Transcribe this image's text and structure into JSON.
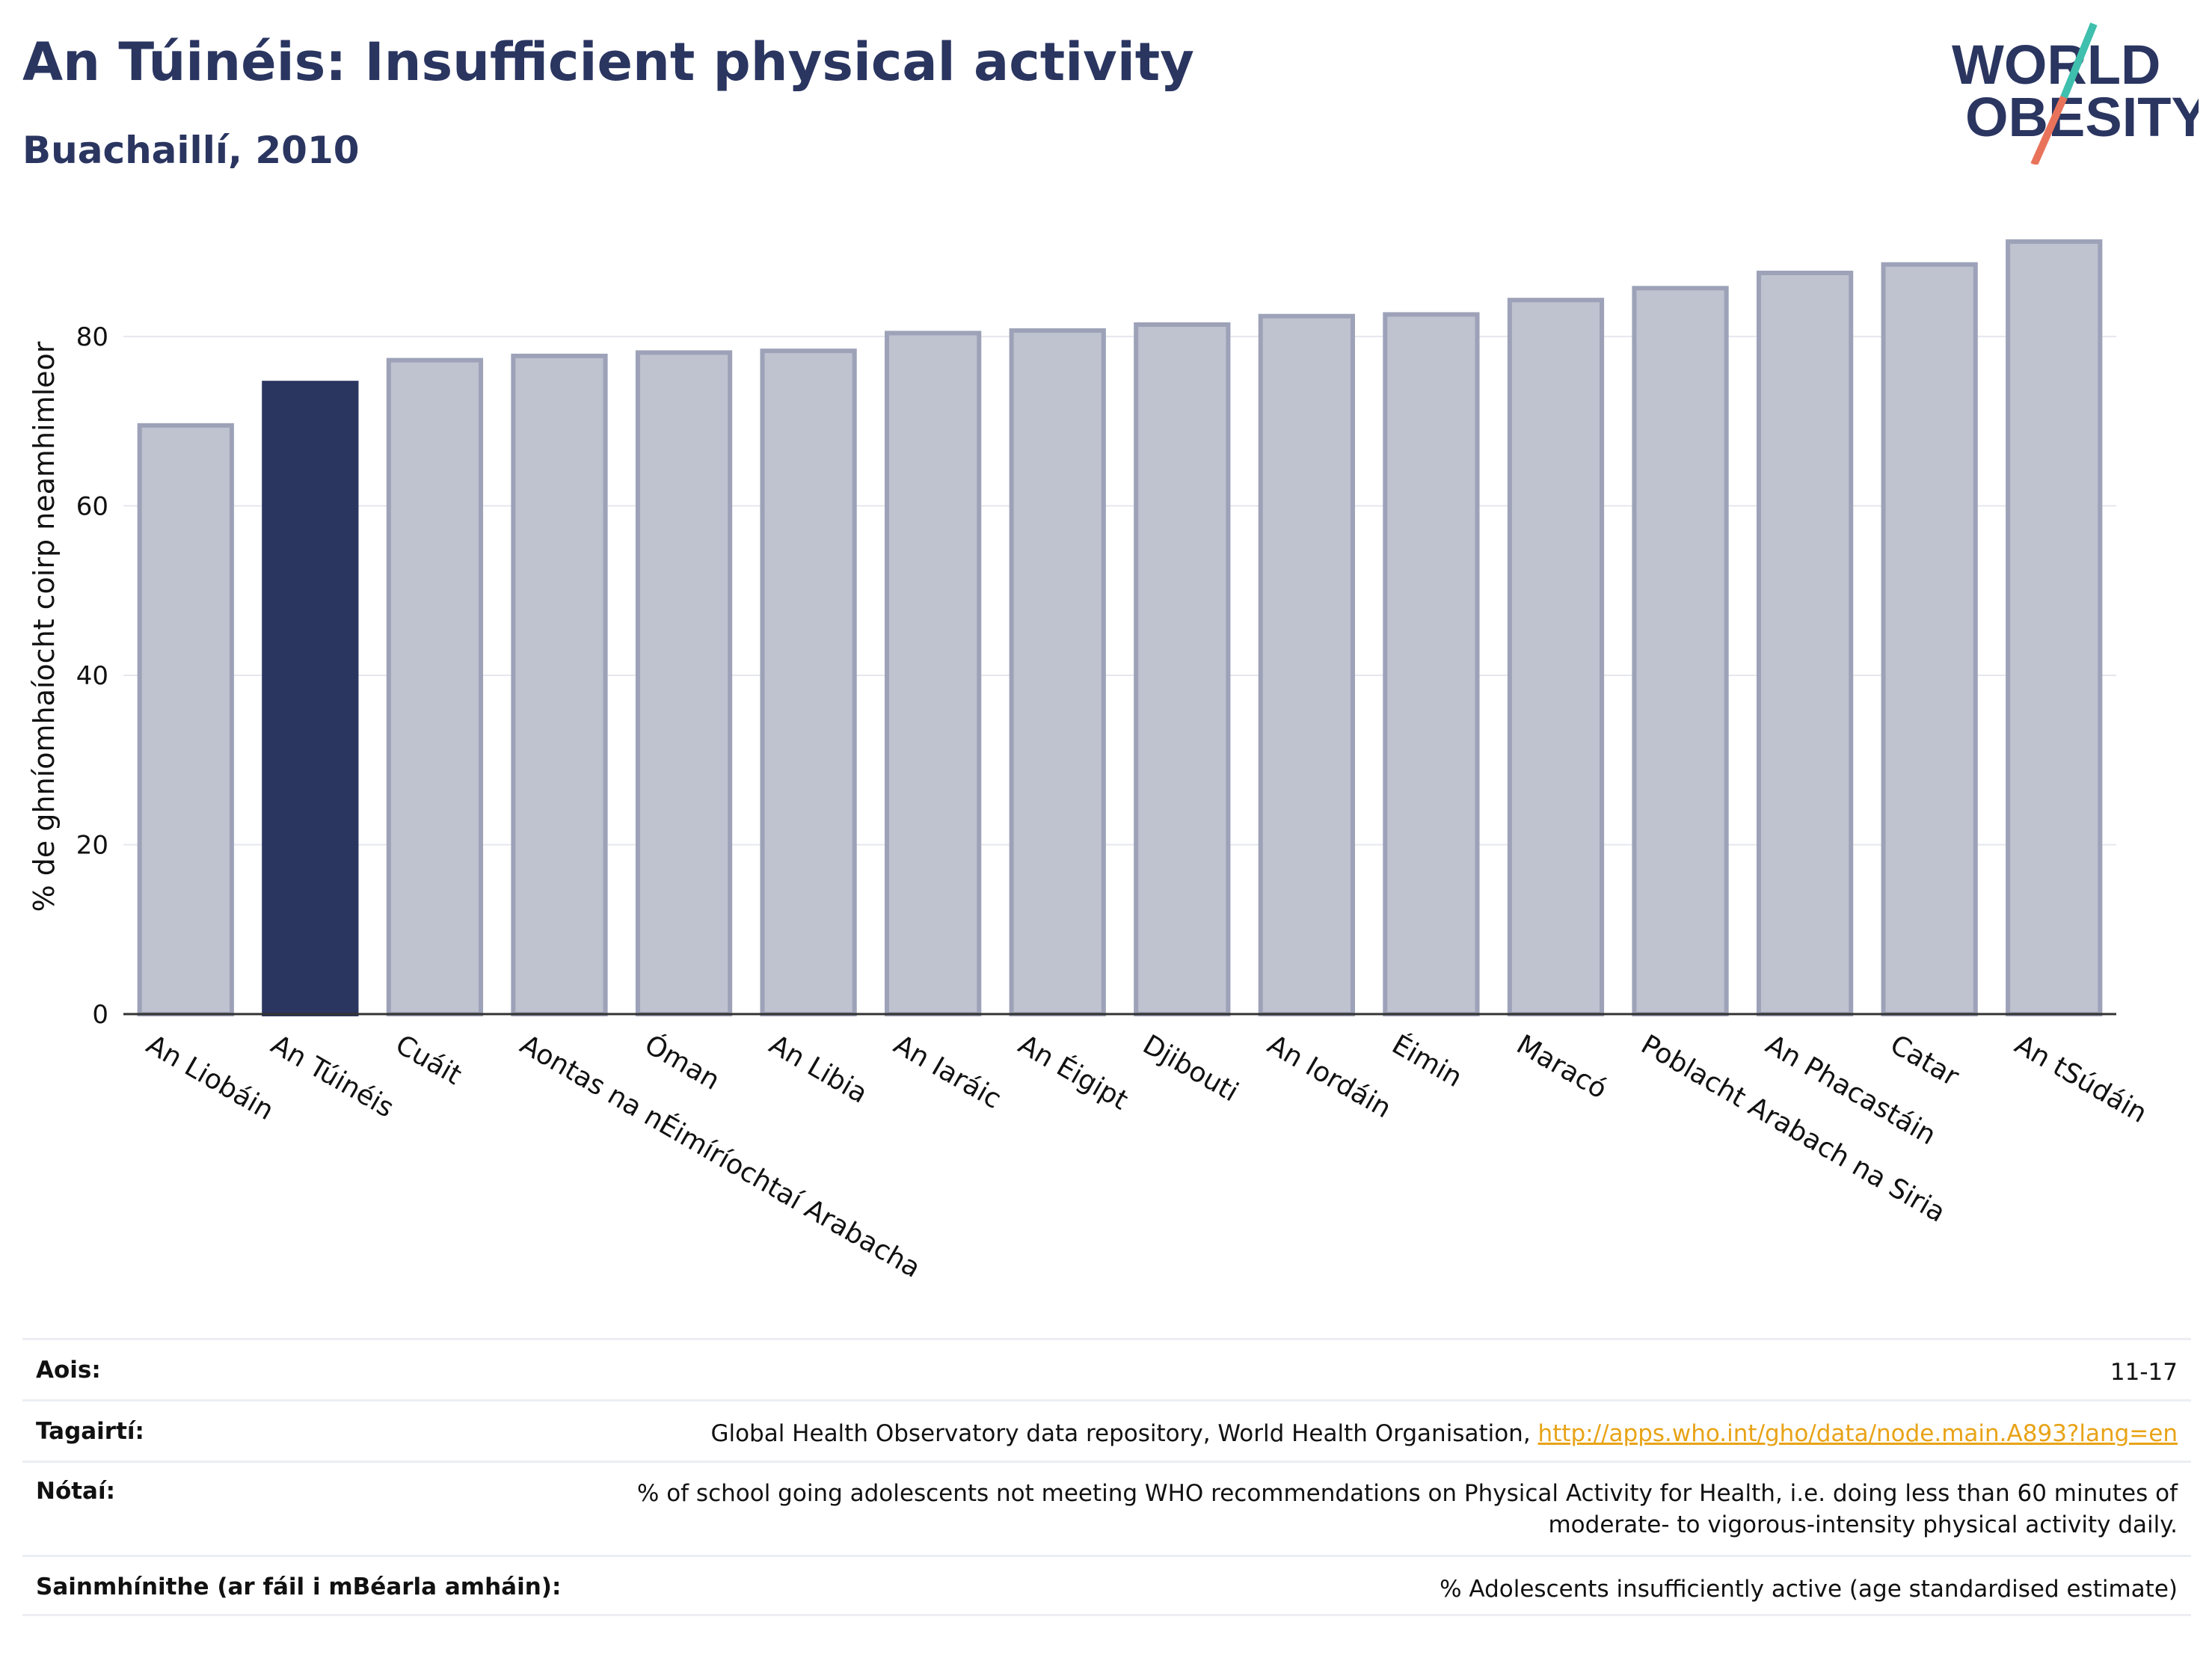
{
  "header": {
    "title": "An Túinéis: Insufficient physical activity",
    "subtitle": "Buachaillí, 2010"
  },
  "logo": {
    "line1": "WORLD",
    "line2": "OBESITY",
    "accent_teal": "#3fbfad",
    "accent_coral": "#e8735a"
  },
  "colors": {
    "highlight": "#2a3560",
    "bar": "#bfc2cf",
    "bar_stroke": "#9da2b8",
    "grid": "#e6e7ee",
    "axis": "#333333"
  },
  "chart_data": {
    "type": "bar",
    "ylabel": "% de ghníomhaíocht coirp neamhimleor",
    "ylim": [
      0,
      95
    ],
    "yticks": [
      0,
      20,
      40,
      60,
      80
    ],
    "grid": true,
    "highlight_index": 1,
    "categories": [
      "An Liobáin",
      "An Túinéis",
      "Cuáit",
      "Aontas na nÉimíríochtaí Arabacha",
      "Óman",
      "An Libia",
      "An Iaráic",
      "An Éigipt",
      "Djibouti",
      "An Iordáin",
      "Éimin",
      "Maracó",
      "Poblacht Arabach na Siria",
      "An Phacastáin",
      "Catar",
      "An tSúdáin"
    ],
    "values": [
      69.5,
      74.5,
      77.2,
      77.7,
      78.1,
      78.3,
      80.4,
      80.7,
      81.4,
      82.4,
      82.6,
      84.3,
      85.7,
      87.5,
      88.5,
      91.2
    ]
  },
  "meta": {
    "rows": [
      {
        "label": "Aois:",
        "value": "11-17"
      },
      {
        "label": "Tagairtí:",
        "value": "Global Health Observatory data repository, World Health Organisation, ",
        "link": "http://apps.who.int/gho/data/node.main.A893?lang=en"
      },
      {
        "label": "Nótaí:",
        "value_line1": "% of school going adolescents not meeting WHO recommendations on Physical Activity for Health, i.e. doing less than 60 minutes of",
        "value_line2": "moderate- to vigorous-intensity physical activity daily."
      },
      {
        "label": "Sainmhínithe (ar fáil i mBéarla amháin):",
        "value": "% Adolescents insufficiently active (age standardised estimate)"
      }
    ]
  }
}
